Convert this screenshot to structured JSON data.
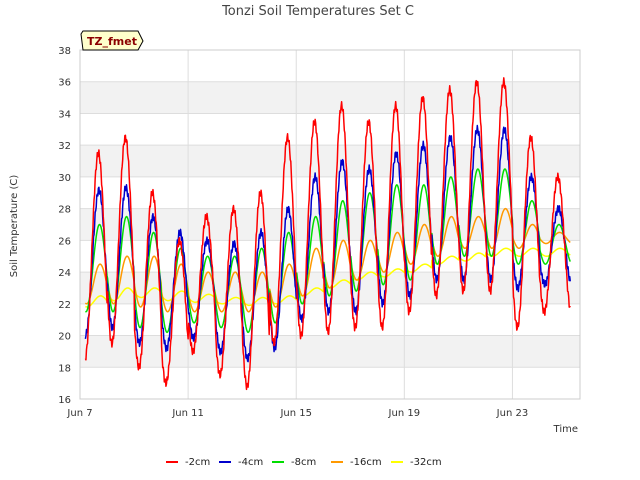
{
  "chart_data": {
    "type": "line",
    "title": "Tonzi Soil Temperatures Set C",
    "xlabel": "Time",
    "ylabel": "Soil Temperature (C)",
    "ylim": [
      16,
      38
    ],
    "yticks": [
      16,
      18,
      20,
      22,
      24,
      26,
      28,
      30,
      32,
      34,
      36,
      38
    ],
    "xlim_days": [
      7,
      25.5
    ],
    "xticks": [
      {
        "day": 7,
        "label": "Jun 7"
      },
      {
        "day": 11,
        "label": "Jun 11"
      },
      {
        "day": 15,
        "label": "Jun 15"
      },
      {
        "day": 19,
        "label": "Jun 19"
      },
      {
        "day": 23,
        "label": "Jun 23"
      }
    ],
    "grid": true,
    "legend_position": "bottom",
    "badge": "TZ_fmet",
    "series": [
      {
        "name": "-2cm",
        "color": "#ff0000",
        "daily_max": [
          31.5,
          32.5,
          29,
          26,
          27.5,
          28,
          29,
          32.5,
          33.5,
          34.5,
          33.5,
          34.5,
          35,
          35.5,
          36,
          36,
          32.5,
          30
        ],
        "daily_min": [
          18.5,
          19.5,
          18,
          17,
          19,
          17.5,
          16.8,
          19.5,
          20,
          20.2,
          20.5,
          20.5,
          21.5,
          22.5,
          22.8,
          22.8,
          20.5,
          21.5
        ]
      },
      {
        "name": "-4cm",
        "color": "#0000cc",
        "daily_max": [
          29.2,
          29.3,
          27.5,
          26.5,
          26,
          25.8,
          26.5,
          28,
          30,
          31,
          30.5,
          31.5,
          32,
          32.5,
          33,
          33,
          30,
          28
        ],
        "daily_min": [
          20,
          20.5,
          19.5,
          19.2,
          19.8,
          19,
          18.5,
          19.2,
          21,
          21.5,
          21.5,
          22,
          22.5,
          23.5,
          23.5,
          23.5,
          23,
          23.2
        ]
      },
      {
        "name": "-8cm",
        "color": "#00dd00",
        "daily_max": [
          27,
          27.5,
          26.5,
          25.5,
          25,
          25,
          25.5,
          26.5,
          27.5,
          28.5,
          29,
          29.5,
          29.5,
          30,
          30.5,
          30.5,
          28.5,
          27
        ],
        "daily_min": [
          21.5,
          21.5,
          20.5,
          20.2,
          20.8,
          20.5,
          20.2,
          20.8,
          22,
          22.5,
          22.8,
          23.2,
          23.5,
          24.5,
          25,
          25,
          24.5,
          24.5
        ]
      },
      {
        "name": "-16cm",
        "color": "#ff9900",
        "daily_max": [
          24.5,
          25,
          25,
          24.5,
          24,
          24,
          24,
          24.5,
          25.5,
          26,
          26,
          26.5,
          27,
          27.5,
          27.5,
          28,
          27,
          26.5
        ],
        "daily_min": [
          22,
          22,
          21.8,
          21.5,
          21.5,
          21.5,
          21.5,
          21.8,
          22.5,
          23,
          23.5,
          24,
          24.5,
          25,
          25.5,
          25.5,
          25.5,
          25.8
        ]
      },
      {
        "name": "-32cm",
        "color": "#ffff00",
        "daily_max": [
          22.5,
          23,
          23,
          22.8,
          22.6,
          22.4,
          22.4,
          22.5,
          23,
          23.5,
          24,
          24.2,
          24.5,
          25,
          25.2,
          25.5,
          25.5,
          25.5
        ],
        "daily_min": [
          21.8,
          22.2,
          22.4,
          22.2,
          22.1,
          22,
          21.9,
          22,
          22.5,
          23,
          23.5,
          23.7,
          24,
          24.5,
          24.7,
          25,
          25,
          25
        ]
      }
    ]
  }
}
